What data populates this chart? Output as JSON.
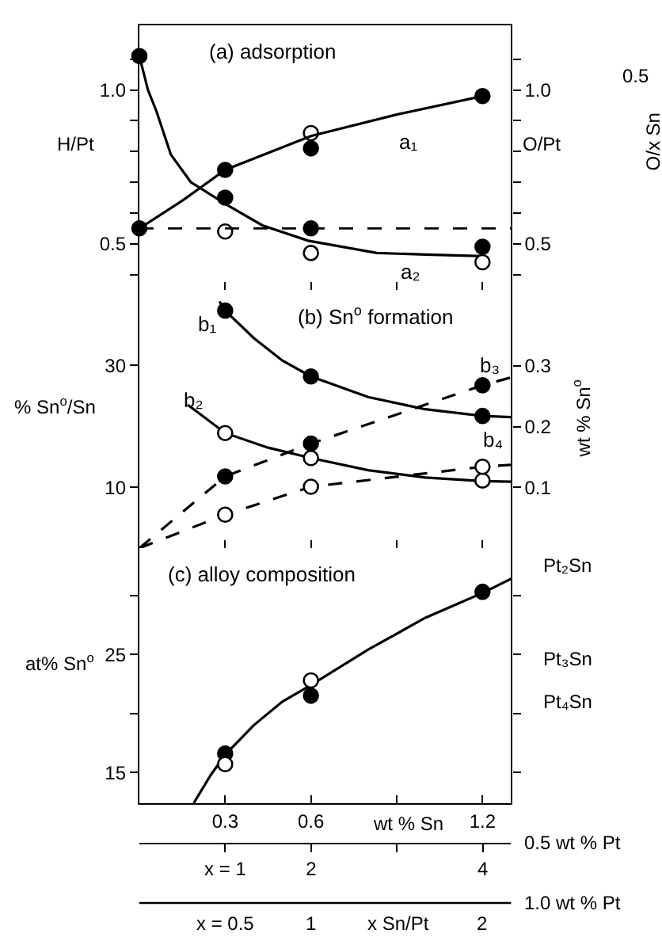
{
  "chart_data": [
    {
      "type": "scatter",
      "title": "(a) adsorption",
      "ylabel": "H/Pt",
      "y2label": "O/Pt",
      "tick_labels": "y",
      "xlim": [
        0,
        1.3
      ],
      "xticks": [
        0.3,
        0.6,
        0.9,
        1.2
      ],
      "ylim": [
        0.35,
        1.21
      ],
      "yticks": [
        {
          "value": 0.4,
          "label": null
        },
        0.5,
        {
          "value": 0.6,
          "label": null
        },
        {
          "value": 0.7,
          "label": null
        },
        {
          "value": 0.8,
          "label": null
        },
        {
          "value": 0.9,
          "label": null
        },
        {
          "value": 1,
          "label": "1.0"
        },
        {
          "value": 1.1,
          "label": null
        }
      ],
      "y2lim": [
        0.35,
        1.21
      ],
      "y2ticks": [
        {
          "value": 0.4,
          "label": null
        },
        0.5,
        {
          "value": 0.6,
          "label": null
        },
        {
          "value": 0.7,
          "label": null
        },
        {
          "value": 0.8,
          "label": null
        },
        {
          "value": 0.9,
          "label": null
        },
        {
          "value": 1,
          "label": "1.0"
        },
        {
          "value": 1.1,
          "label": null
        }
      ],
      "ref_lines": [
        {
          "axis": "y",
          "value": 0.55,
          "line_style": "dashed",
          "color": "#000000"
        }
      ],
      "annotations": [
        "a₁",
        "a₂",
        "0.5",
        "O/x Sn"
      ],
      "series": [
        {
          "type": "line",
          "axis": "y2",
          "color": "#000000",
          "line_style": "solid",
          "x": [
            0,
            0.15,
            0.3,
            0.6,
            0.9,
            1.2
          ],
          "values": [
            0.55,
            0.64,
            0.74,
            0.85,
            0.92,
            0.98
          ]
        },
        {
          "type": "line",
          "axis": "y",
          "color": "#000000",
          "line_style": "solid",
          "x": [
            0,
            0.03,
            0.06,
            0.11,
            0.18,
            0.3,
            0.43,
            0.59,
            0.83,
            1.0,
            1.2
          ],
          "values": [
            1.11,
            1.0,
            0.93,
            0.79,
            0.7,
            0.63,
            0.56,
            0.51,
            0.47,
            0.465,
            0.46
          ]
        },
        {
          "type": "scatter",
          "axis": "y2",
          "color": "#000000",
          "marker": "circle",
          "x": [
            0,
            0.3,
            1.2
          ],
          "values": [
            0.55,
            0.74,
            0.98
          ]
        },
        {
          "type": "scatter",
          "axis": "y",
          "color": "#000000",
          "marker": "circle",
          "x": [
            0,
            0.3,
            0.6,
            0.6,
            1.2
          ],
          "values": [
            1.11,
            0.65,
            0.81,
            0.55,
            0.49
          ]
        },
        {
          "type": "scatter",
          "axis": "y",
          "color": "#ffffff",
          "marker": "circle",
          "x": [
            0.3,
            0.6,
            0.6,
            1.2
          ],
          "values": [
            0.54,
            0.86,
            0.47,
            0.44
          ]
        }
      ]
    },
    {
      "type": "scatter",
      "title": "(b) Sn$^{o}$ formation",
      "ylabel": "% Sn$^{o}$/Sn",
      "y2label": "wt % Sn$^{o}$",
      "tick_labels": "y",
      "xlim": [
        0,
        1.3
      ],
      "xticks": [
        0.3,
        0.6,
        0.9,
        1.2
      ],
      "ylim": [
        0,
        42.4
      ],
      "yticks": [
        10,
        30
      ],
      "y2lim": [
        0,
        0.425
      ],
      "y2ticks": [
        0.1,
        0.2,
        0.3
      ],
      "annotations": [
        "b₁",
        "b₂",
        "b₃",
        "b₄"
      ],
      "series": [
        {
          "type": "line",
          "axis": "y",
          "color": "#000000",
          "line_style": "solid",
          "x": [
            0.28,
            0.3,
            0.4,
            0.5,
            0.6,
            0.8,
            1.0,
            1.2,
            1.3
          ],
          "values": [
            40.5,
            39,
            34.5,
            30.8,
            28.2,
            24.8,
            22.8,
            21.7,
            21.5
          ]
        },
        {
          "type": "line",
          "axis": "y",
          "color": "#000000",
          "line_style": "solid",
          "x": [
            0.17,
            0.3,
            0.45,
            0.6,
            0.8,
            1.0,
            1.2,
            1.3
          ],
          "values": [
            23.5,
            18.9,
            16.5,
            14.8,
            12.8,
            11.6,
            11.0,
            10.9
          ]
        },
        {
          "type": "line",
          "axis": "y2",
          "color": "#000000",
          "line_style": "dashed",
          "x": [
            0,
            0.3,
            0.6,
            1.2,
            1.3
          ],
          "values": [
            0,
            0.118,
            0.172,
            0.268,
            0.281
          ]
        },
        {
          "type": "line",
          "axis": "y2",
          "color": "#000000",
          "line_style": "dashed",
          "x": [
            0,
            0.3,
            0.6,
            1.2,
            1.3
          ],
          "values": [
            0,
            0.055,
            0.101,
            0.134,
            0.137
          ]
        },
        {
          "type": "scatter",
          "axis": "y",
          "color": "#000000",
          "marker": "circle",
          "x": [
            0.3,
            0.6,
            1.2
          ],
          "values": [
            39,
            28.2,
            21.7
          ]
        },
        {
          "type": "scatter",
          "axis": "y",
          "color": "#ffffff",
          "marker": "circle",
          "x": [
            0.3,
            0.6,
            1.2
          ],
          "values": [
            18.9,
            14.8,
            11.1
          ]
        },
        {
          "type": "scatter",
          "axis": "y2",
          "color": "#000000",
          "marker": "circle",
          "x": [
            0.3,
            0.6,
            1.2
          ],
          "values": [
            0.118,
            0.172,
            0.268
          ]
        },
        {
          "type": "scatter",
          "axis": "y2",
          "color": "#ffffff",
          "marker": "circle",
          "x": [
            0.3,
            0.6,
            1.2
          ],
          "values": [
            0.055,
            0.101,
            0.134
          ]
        }
      ]
    },
    {
      "type": "scatter",
      "title": "(c) alloy composition",
      "ylabel": "at% Sn$^{o}$",
      "xlabel": "wt % Sn",
      "x2label": "0.5 wt % Pt",
      "xlim": [
        0,
        1.3
      ],
      "xticks": [
        0.3,
        0.6,
        {
          "value": 0.9,
          "label": null
        },
        1.2
      ],
      "ylim": [
        12.4,
        34
      ],
      "yticks": [
        15,
        {
          "value": 20,
          "label": null
        },
        25,
        {
          "value": 30,
          "label": null
        }
      ],
      "annotations": [
        "Pt₂Sn",
        "Pt₃Sn",
        "Pt₄Sn"
      ],
      "x2lim": [
        0,
        4.33
      ],
      "x2ticks": [
        {
          "value": 1,
          "label": "x = 1"
        },
        2,
        {
          "value": 3,
          "label": null
        },
        4
      ],
      "series": [
        {
          "type": "line",
          "axis": "y",
          "color": "#000000",
          "line_style": "solid",
          "x": [
            0.19,
            0.25,
            0.3,
            0.4,
            0.5,
            0.6,
            0.8,
            1.0,
            1.2,
            1.3
          ],
          "values": [
            12.4,
            14.8,
            16.5,
            19.0,
            21.0,
            22.4,
            25.4,
            28.1,
            30.2,
            31.4
          ]
        },
        {
          "type": "scatter",
          "axis": "y",
          "color": "#000000",
          "marker": "circle",
          "x": [
            0.3,
            0.6,
            1.2
          ],
          "values": [
            16.6,
            21.5,
            30.3
          ]
        },
        {
          "type": "scatter",
          "axis": "y",
          "color": "#ffffff",
          "marker": "circle",
          "x": [
            0.3,
            0.6
          ],
          "values": [
            15.7,
            22.8
          ]
        }
      ]
    },
    {
      "type": "other",
      "xlabel": "1.0 wt % Pt",
      "annotations": [
        "x = 0.5",
        "1",
        "x Sn/Pt",
        "2"
      ]
    }
  ]
}
